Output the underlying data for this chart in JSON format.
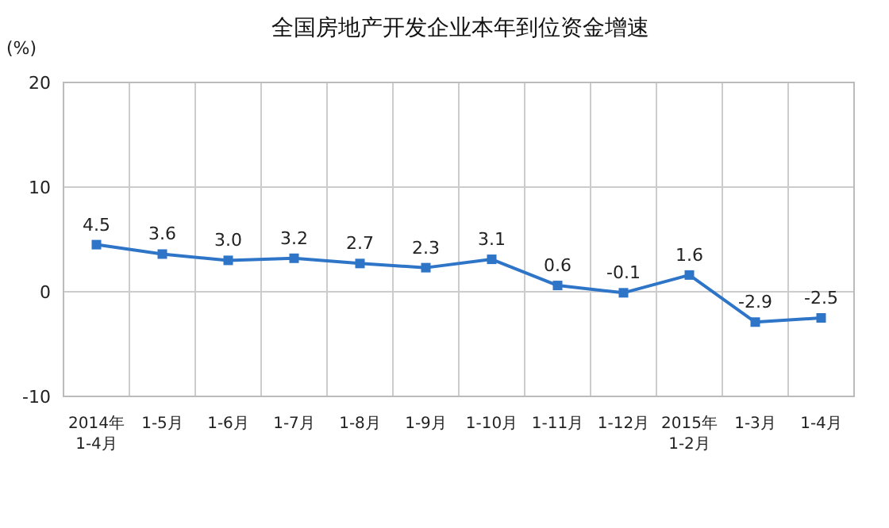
{
  "chart_data": {
    "type": "line",
    "title": "全国房地产开发企业本年到位资金增速",
    "ylabel": "(%)",
    "categories": [
      "2014年\n1-4月",
      "1-5月",
      "1-6月",
      "1-7月",
      "1-8月",
      "1-9月",
      "1-10月",
      "1-11月",
      "1-12月",
      "2015年\n1-2月",
      "1-3月",
      "1-4月"
    ],
    "series": [
      {
        "color": "#2e75c8",
        "values": [
          4.5,
          3.6,
          3.0,
          3.2,
          2.7,
          2.3,
          3.1,
          0.6,
          -0.1,
          1.6,
          -2.9,
          -2.5
        ]
      }
    ],
    "value_labels": [
      "4.5",
      "3.6",
      "3.0",
      "3.2",
      "2.7",
      "2.3",
      "3.1",
      "0.6",
      "-0.1",
      "1.6",
      "-2.9",
      "-2.5"
    ],
    "ylim": [
      -10,
      20
    ],
    "yticks": [
      -10,
      0,
      10,
      20
    ],
    "grid": true,
    "marker": "square",
    "line_style": "solid"
  }
}
